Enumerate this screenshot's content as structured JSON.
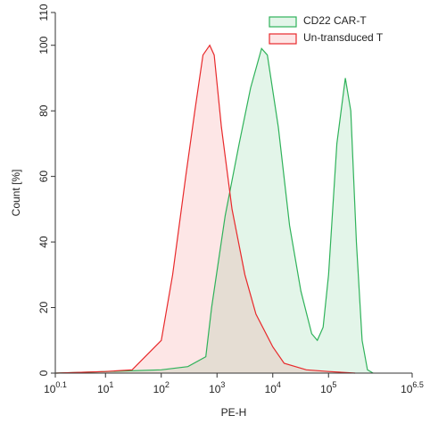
{
  "chart_data": {
    "type": "histogram-overlay",
    "x_label": "PE-H",
    "y_label": "Count [%]",
    "xscale": "log",
    "xlim": [
      1.2589,
      3162278
    ],
    "xticks": [
      {
        "value": 1.2589,
        "label": "10",
        "exponent": "0.1"
      },
      {
        "value": 10,
        "label": "10",
        "exponent": "1"
      },
      {
        "value": 100,
        "label": "10",
        "exponent": "2"
      },
      {
        "value": 1000,
        "label": "10",
        "exponent": "3"
      },
      {
        "value": 10000,
        "label": "10",
        "exponent": "4"
      },
      {
        "value": 100000,
        "label": "10",
        "exponent": "5"
      },
      {
        "value": 3162278,
        "label": "10",
        "exponent": "6.5"
      }
    ],
    "ylim": [
      0,
      110
    ],
    "yticks": [
      0,
      20,
      40,
      60,
      80,
      100,
      110
    ],
    "legend": "top-right",
    "series": [
      {
        "name": "CD22 CAR-T",
        "color": "#2fb25a",
        "fill": "rgba(60,185,100,0.14)",
        "x": [
          1.3,
          100,
          300,
          630,
          800,
          1400,
          2500,
          4000,
          6300,
          8000,
          12600,
          20000,
          32000,
          50000,
          63000,
          80000,
          100000,
          141000,
          200000,
          251000,
          316000,
          400000,
          500000,
          630000
        ],
        "values": [
          0,
          1,
          2,
          5,
          20,
          48,
          70,
          87,
          99,
          97,
          75,
          45,
          25,
          12,
          10,
          14,
          30,
          70,
          90,
          80,
          40,
          10,
          1,
          0
        ]
      },
      {
        "name": "Un-transduced T",
        "color": "#e8292b",
        "fill": "rgba(240,90,90,0.15)",
        "x": [
          1.3,
          10,
          30,
          100,
          160,
          275,
          400,
          560,
          740,
          890,
          1200,
          1860,
          3160,
          5000,
          10000,
          16000,
          40000,
          100000,
          300000
        ],
        "values": [
          0,
          0.5,
          1,
          10,
          30,
          60,
          80,
          97,
          100,
          97,
          75,
          50,
          30,
          18,
          8,
          3,
          1,
          0.5,
          0
        ]
      }
    ]
  }
}
